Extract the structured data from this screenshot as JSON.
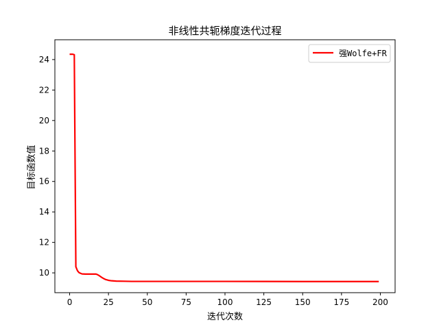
{
  "chart_data": {
    "type": "line",
    "title": "非线性共轭梯度迭代过程",
    "xlabel": "迭代次数",
    "ylabel": "目标函数值",
    "xlim": [
      -9.5,
      209.5
    ],
    "ylim": [
      8.7,
      25.3
    ],
    "xticks": [
      0,
      25,
      50,
      75,
      100,
      125,
      150,
      175,
      200
    ],
    "yticks": [
      10,
      12,
      14,
      16,
      18,
      20,
      22,
      24
    ],
    "grid": false,
    "legend_position": "top-right",
    "series": [
      {
        "name": "强Wolfe+FR",
        "color": "#ff0000",
        "x": [
          0,
          1,
          2,
          3,
          4,
          5,
          6,
          7,
          8,
          10,
          12,
          14,
          16,
          17,
          18,
          19,
          20,
          21,
          22,
          23,
          24,
          25,
          27,
          30,
          35,
          40,
          50,
          75,
          100,
          150,
          199
        ],
        "y": [
          24.35,
          24.35,
          24.35,
          24.32,
          10.4,
          10.15,
          10.02,
          9.97,
          9.93,
          9.92,
          9.92,
          9.92,
          9.92,
          9.92,
          9.88,
          9.82,
          9.75,
          9.68,
          9.62,
          9.57,
          9.54,
          9.51,
          9.48,
          9.46,
          9.45,
          9.44,
          9.44,
          9.44,
          9.44,
          9.43,
          9.43
        ]
      }
    ]
  },
  "colors": {
    "axes": "#000000",
    "background": "#ffffff"
  }
}
